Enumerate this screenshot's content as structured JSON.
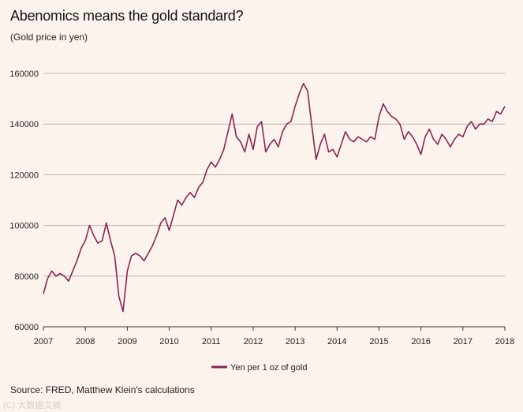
{
  "header": {
    "title": "Abenomics means the gold standard?",
    "subtitle": "(Gold price in yen)"
  },
  "footer": {
    "source": "Source: FRED, Matthew Klein's calculations",
    "watermark": "(C) 大数据文摘"
  },
  "colors": {
    "background": "#fcf4ec",
    "line": "#8b2352",
    "grid": "#b9b3ad",
    "axis": "#333333"
  },
  "chart_data": {
    "type": "line",
    "title": "Abenomics means the gold standard?",
    "subtitle": "(Gold price in yen)",
    "xlabel": "",
    "ylabel": "",
    "xlim": [
      2007,
      2018
    ],
    "ylim": [
      60000,
      160000
    ],
    "x_ticks": [
      "2007",
      "2008",
      "2009",
      "2010",
      "2011",
      "2012",
      "2013",
      "2014",
      "2015",
      "2016",
      "2017",
      "2018"
    ],
    "y_ticks": [
      "60000",
      "80000",
      "100000",
      "120000",
      "140000",
      "160000"
    ],
    "legend": {
      "position": "bottom",
      "entries": [
        "Yen per 1 oz of gold"
      ]
    },
    "series": [
      {
        "name": "Yen per 1 oz of gold",
        "x": [
          2007.0,
          2007.1,
          2007.2,
          2007.3,
          2007.4,
          2007.5,
          2007.6,
          2007.7,
          2007.8,
          2007.9,
          2008.0,
          2008.1,
          2008.2,
          2008.3,
          2008.4,
          2008.5,
          2008.6,
          2008.7,
          2008.8,
          2008.9,
          2009.0,
          2009.1,
          2009.2,
          2009.3,
          2009.4,
          2009.5,
          2009.6,
          2009.7,
          2009.8,
          2009.9,
          2010.0,
          2010.1,
          2010.2,
          2010.3,
          2010.4,
          2010.5,
          2010.6,
          2010.7,
          2010.8,
          2010.9,
          2011.0,
          2011.1,
          2011.2,
          2011.3,
          2011.4,
          2011.5,
          2011.6,
          2011.7,
          2011.8,
          2011.9,
          2012.0,
          2012.1,
          2012.2,
          2012.3,
          2012.4,
          2012.5,
          2012.6,
          2012.7,
          2012.8,
          2012.9,
          2013.0,
          2013.1,
          2013.2,
          2013.3,
          2013.4,
          2013.5,
          2013.6,
          2013.7,
          2013.8,
          2013.9,
          2014.0,
          2014.1,
          2014.2,
          2014.3,
          2014.4,
          2014.5,
          2014.6,
          2014.7,
          2014.8,
          2014.9,
          2015.0,
          2015.1,
          2015.2,
          2015.3,
          2015.4,
          2015.5,
          2015.6,
          2015.7,
          2015.8,
          2015.9,
          2016.0,
          2016.1,
          2016.2,
          2016.3,
          2016.4,
          2016.5,
          2016.6,
          2016.7,
          2016.8,
          2016.9,
          2017.0,
          2017.1,
          2017.2,
          2017.3,
          2017.4,
          2017.5,
          2017.6,
          2017.7,
          2017.8,
          2017.9,
          2018.0
        ],
        "y": [
          73000,
          79000,
          82000,
          80000,
          81000,
          80000,
          78000,
          82000,
          86000,
          91000,
          94000,
          100000,
          96000,
          93000,
          94000,
          101000,
          94000,
          88000,
          72000,
          66000,
          82000,
          88000,
          89000,
          88000,
          86000,
          89000,
          92000,
          96000,
          101000,
          103000,
          98000,
          104000,
          110000,
          108000,
          111000,
          113000,
          111000,
          115000,
          117000,
          122000,
          125000,
          123000,
          126000,
          130000,
          137000,
          144000,
          135000,
          133000,
          129000,
          136000,
          130000,
          139000,
          141000,
          129000,
          132000,
          134000,
          131000,
          137000,
          140000,
          141000,
          147000,
          152000,
          156000,
          153000,
          139000,
          126000,
          132000,
          136000,
          129000,
          130000,
          127000,
          132000,
          137000,
          134000,
          133000,
          135000,
          134000,
          133000,
          135000,
          134000,
          143000,
          148000,
          145000,
          143000,
          142000,
          140000,
          134000,
          137000,
          135000,
          132000,
          128000,
          135000,
          138000,
          134000,
          132000,
          136000,
          134000,
          131000,
          134000,
          136000,
          135000,
          139000,
          141000,
          138000,
          140000,
          140000,
          142000,
          141000,
          145000,
          144000,
          147000
        ]
      }
    ]
  }
}
